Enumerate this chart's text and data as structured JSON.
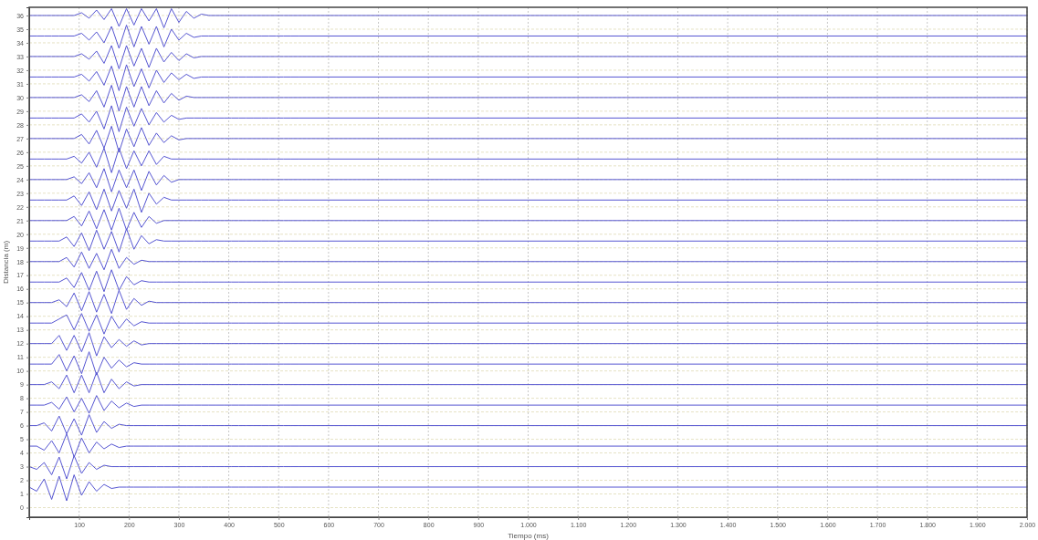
{
  "chart_data": {
    "type": "line",
    "xlabel": "Tiempo (ms)",
    "ylabel": "Distancia (m)",
    "grid": true,
    "xlim": [
      0,
      2000
    ],
    "ylim": [
      -0.7,
      36.6
    ],
    "xticks": [
      100,
      200,
      300,
      400,
      500,
      600,
      700,
      800,
      900,
      {
        "value": 1000,
        "label": "1.000"
      },
      {
        "value": 1100,
        "label": "1.100"
      },
      {
        "value": 1200,
        "label": "1.200"
      },
      {
        "value": 1300,
        "label": "1.300"
      },
      {
        "value": 1400,
        "label": "1.400"
      },
      {
        "value": 1500,
        "label": "1.500"
      },
      {
        "value": 1600,
        "label": "1.600"
      },
      {
        "value": 1700,
        "label": "1.700"
      },
      {
        "value": 1800,
        "label": "1.800"
      },
      {
        "value": 1900,
        "label": "1.900"
      },
      {
        "value": 2000,
        "label": "2.000"
      }
    ],
    "yticks": [
      0,
      1,
      2,
      3,
      4,
      5,
      6,
      7,
      8,
      9,
      10,
      11,
      12,
      13,
      14,
      15,
      16,
      17,
      18,
      19,
      20,
      21,
      22,
      23,
      24,
      25,
      26,
      27,
      28,
      29,
      30,
      31,
      32,
      33,
      34,
      35,
      36
    ],
    "x": [
      0,
      15,
      30,
      45,
      60,
      75,
      90,
      105,
      120,
      135,
      150,
      165,
      180,
      195,
      210,
      225,
      240,
      255,
      270,
      285,
      300,
      315,
      330,
      345,
      360,
      375,
      390,
      405,
      420,
      435,
      450,
      465,
      480,
      495,
      510,
      525,
      540,
      2000
    ],
    "series": [
      {
        "color": "#5656d2",
        "values": [
          1.5,
          1.2,
          2.1,
          0.6,
          2.3,
          0.5,
          2.4,
          0.9,
          1.9,
          1.2,
          1.7,
          1.4,
          1.5,
          1.5,
          1.5,
          1.5,
          1.5,
          1.5,
          1.5,
          1.5,
          1.5,
          1.5,
          1.5,
          1.5,
          1.5,
          1.5,
          1.5,
          1.5,
          1.5,
          1.5,
          1.5,
          1.5,
          1.5,
          1.5,
          1.5,
          1.5,
          1.5,
          1.5
        ]
      },
      {
        "color": "#5656d2",
        "values": [
          3,
          2.8,
          3.3,
          2.4,
          3.7,
          2.1,
          3.8,
          2.5,
          3.3,
          2.8,
          3.1,
          3,
          3,
          3,
          3,
          3,
          3,
          3,
          3,
          3,
          3,
          3,
          3,
          3,
          3,
          3,
          3,
          3,
          3,
          3,
          3,
          3,
          3,
          3,
          3,
          3,
          3,
          3
        ]
      },
      {
        "color": "#5656d2",
        "values": [
          4.5,
          4.5,
          4.2,
          4.9,
          4.0,
          5.4,
          3.7,
          5.1,
          4.0,
          4.8,
          4.3,
          4.65,
          4.4,
          4.5,
          4.5,
          4.5,
          4.5,
          4.5,
          4.5,
          4.5,
          4.5,
          4.5,
          4.5,
          4.5,
          4.5,
          4.5,
          4.5,
          4.5,
          4.5,
          4.5,
          4.5,
          4.5,
          4.5,
          4.5,
          4.5,
          4.5,
          4.5,
          4.5
        ]
      },
      {
        "color": "#5656d2",
        "values": [
          6,
          6,
          6.2,
          5.6,
          6.7,
          5.4,
          6.5,
          5.3,
          6.8,
          5.5,
          6.3,
          5.8,
          6.1,
          6,
          6,
          6,
          6,
          6,
          6,
          6,
          6,
          6,
          6,
          6,
          6,
          6,
          6,
          6,
          6,
          6,
          6,
          6,
          6,
          6,
          6,
          6,
          6,
          6
        ]
      },
      {
        "color": "#5656d2",
        "values": [
          7.5,
          7.5,
          7.5,
          7.7,
          7.2,
          8.1,
          7.0,
          8.0,
          6.9,
          8.2,
          7.1,
          7.8,
          7.3,
          7.65,
          7.4,
          7.5,
          7.5,
          7.5,
          7.5,
          7.5,
          7.5,
          7.5,
          7.5,
          7.5,
          7.5,
          7.5,
          7.5,
          7.5,
          7.5,
          7.5,
          7.5,
          7.5,
          7.5,
          7.5,
          7.5,
          7.5,
          7.5,
          7.5
        ]
      },
      {
        "color": "#5656d2",
        "values": [
          9,
          9,
          9,
          9.2,
          8.7,
          9.7,
          8.4,
          9.7,
          8.4,
          9.9,
          8.4,
          9.4,
          8.7,
          9.2,
          8.9,
          9,
          9,
          9,
          9,
          9,
          9,
          9,
          9,
          9,
          9,
          9,
          9,
          9,
          9,
          9,
          9,
          9,
          9,
          9,
          9,
          9,
          9,
          9
        ]
      },
      {
        "color": "#5656d2",
        "values": [
          10.5,
          10.5,
          10.5,
          10.5,
          11.2,
          10.0,
          11.1,
          9.8,
          11.4,
          9.7,
          11.0,
          10.2,
          10.8,
          10.3,
          10.6,
          10.5,
          10.5,
          10.5,
          10.5,
          10.5,
          10.5,
          10.5,
          10.5,
          10.5,
          10.5,
          10.5,
          10.5,
          10.5,
          10.5,
          10.5,
          10.5,
          10.5,
          10.5,
          10.5,
          10.5,
          10.5,
          10.5,
          10.5
        ]
      },
      {
        "color": "#5656d2",
        "values": [
          12,
          12,
          12,
          12,
          12.6,
          11.5,
          12.6,
          11.4,
          12.8,
          11.1,
          12.5,
          11.7,
          12.3,
          11.8,
          12.2,
          11.9,
          12,
          12,
          12,
          12,
          12,
          12,
          12,
          12,
          12,
          12,
          12,
          12,
          12,
          12,
          12,
          12,
          12,
          12,
          12,
          12,
          12,
          12
        ]
      },
      {
        "color": "#5656d2",
        "values": [
          13.5,
          13.5,
          13.5,
          13.5,
          13.8,
          14.1,
          13.0,
          14.2,
          12.9,
          14.1,
          12.7,
          14.0,
          13.1,
          13.8,
          13.3,
          13.6,
          13.5,
          13.5,
          13.5,
          13.5,
          13.5,
          13.5,
          13.5,
          13.5,
          13.5,
          13.5,
          13.5,
          13.5,
          13.5,
          13.5,
          13.5,
          13.5,
          13.5,
          13.5,
          13.5,
          13.5,
          13.5,
          13.5
        ]
      },
      {
        "color": "#5656d2",
        "values": [
          15,
          15,
          15,
          15,
          15.2,
          14.7,
          15.7,
          14.4,
          15.8,
          14.3,
          15.6,
          14.2,
          15.9,
          14.5,
          15.3,
          14.8,
          15.1,
          15,
          15,
          15,
          15,
          15,
          15,
          15,
          15,
          15,
          15,
          15,
          15,
          15,
          15,
          15,
          15,
          15,
          15,
          15,
          15,
          15
        ]
      },
      {
        "color": "#5656d2",
        "values": [
          16.5,
          16.5,
          16.5,
          16.5,
          16.5,
          16.8,
          16.1,
          17.2,
          15.9,
          17.3,
          15.8,
          17.4,
          15.9,
          16.9,
          16.3,
          16.6,
          16.5,
          16.5,
          16.5,
          16.5,
          16.5,
          16.5,
          16.5,
          16.5,
          16.5,
          16.5,
          16.5,
          16.5,
          16.5,
          16.5,
          16.5,
          16.5,
          16.5,
          16.5,
          16.5,
          16.5,
          16.5,
          16.5
        ]
      },
      {
        "color": "#5656d2",
        "values": [
          18,
          18,
          18,
          18,
          18,
          18.3,
          17.6,
          18.7,
          17.5,
          18.6,
          17.4,
          18.9,
          17.5,
          18.3,
          17.8,
          18.1,
          18,
          18,
          18,
          18,
          18,
          18,
          18,
          18,
          18,
          18,
          18,
          18,
          18,
          18,
          18,
          18,
          18,
          18,
          18,
          18,
          18,
          18
        ]
      },
      {
        "color": "#5656d2",
        "values": [
          19.5,
          19.5,
          19.5,
          19.5,
          19.5,
          19.8,
          19.1,
          20.1,
          18.8,
          20.3,
          18.9,
          20.2,
          18.7,
          20.4,
          18.9,
          19.9,
          19.3,
          19.6,
          19.5,
          19.5,
          19.5,
          19.5,
          19.5,
          19.5,
          19.5,
          19.5,
          19.5,
          19.5,
          19.5,
          19.5,
          19.5,
          19.5,
          19.5,
          19.5,
          19.5,
          19.5,
          19.5,
          19.5
        ]
      },
      {
        "color": "#5656d2",
        "values": [
          21,
          21,
          21,
          21,
          21,
          21,
          21.3,
          20.6,
          21.7,
          20.4,
          21.8,
          20.3,
          21.9,
          20.3,
          21.6,
          20.5,
          21.3,
          20.8,
          21,
          21,
          21,
          21,
          21,
          21,
          21,
          21,
          21,
          21,
          21,
          21,
          21,
          21,
          21,
          21,
          21,
          21,
          21,
          21
        ]
      },
      {
        "color": "#5656d2",
        "values": [
          22.5,
          22.5,
          22.5,
          22.5,
          22.5,
          22.5,
          22.8,
          22.1,
          23.1,
          21.8,
          23.3,
          21.7,
          23.2,
          21.9,
          23.3,
          21.6,
          23.0,
          22.2,
          22.7,
          22.5,
          22.5,
          22.5,
          22.5,
          22.5,
          22.5,
          22.5,
          22.5,
          22.5,
          22.5,
          22.5,
          22.5,
          22.5,
          22.5,
          22.5,
          22.5,
          22.5,
          22.5,
          22.5
        ]
      },
      {
        "color": "#5656d2",
        "values": [
          24,
          24,
          24,
          24,
          24,
          24,
          24.2,
          23.7,
          24.5,
          23.4,
          24.8,
          23.1,
          24.7,
          23.4,
          24.7,
          23.2,
          24.6,
          23.6,
          24.3,
          23.8,
          24,
          24,
          24,
          24,
          24,
          24,
          24,
          24,
          24,
          24,
          24,
          24,
          24,
          24,
          24,
          24,
          24,
          24
        ]
      },
      {
        "color": "#5656d2",
        "values": [
          25.5,
          25.5,
          25.5,
          25.5,
          25.5,
          25.5,
          25.7,
          25.2,
          26.0,
          24.9,
          26.3,
          24.5,
          26.3,
          24.8,
          26.1,
          25.0,
          26.1,
          25.1,
          25.7,
          25.5,
          25.5,
          25.5,
          25.5,
          25.5,
          25.5,
          25.5,
          25.5,
          25.5,
          25.5,
          25.5,
          25.5,
          25.5,
          25.5,
          25.5,
          25.5,
          25.5,
          25.5,
          25.5
        ]
      },
      {
        "color": "#5656d2",
        "values": [
          27,
          27,
          27,
          27,
          27,
          27,
          27,
          27.3,
          26.6,
          27.6,
          26.3,
          27.9,
          26.0,
          27.7,
          26.4,
          27.8,
          26.5,
          27.4,
          26.7,
          27.2,
          26.9,
          27,
          27,
          27,
          27,
          27,
          27,
          27,
          27,
          27,
          27,
          27,
          27,
          27,
          27,
          27,
          27,
          27
        ]
      },
      {
        "color": "#5656d2",
        "values": [
          28.5,
          28.5,
          28.5,
          28.5,
          28.5,
          28.5,
          28.5,
          28.8,
          28.2,
          29.0,
          27.7,
          29.4,
          27.5,
          29.3,
          27.9,
          29.2,
          28.0,
          28.9,
          28.2,
          28.7,
          28.4,
          28.5,
          28.5,
          28.5,
          28.5,
          28.5,
          28.5,
          28.5,
          28.5,
          28.5,
          28.5,
          28.5,
          28.5,
          28.5,
          28.5,
          28.5,
          28.5,
          28.5
        ]
      },
      {
        "color": "#5656d2",
        "values": [
          30,
          30,
          30,
          30,
          30,
          30,
          30,
          30.2,
          29.7,
          30.5,
          29.3,
          30.9,
          29.0,
          30.8,
          29.3,
          30.8,
          29.4,
          30.5,
          29.6,
          30.3,
          29.8,
          30.1,
          30,
          30,
          30,
          30,
          30,
          30,
          30,
          30,
          30,
          30,
          30,
          30,
          30,
          30,
          30,
          30
        ]
      },
      {
        "color": "#5656d2",
        "values": [
          31.5,
          31.5,
          31.5,
          31.5,
          31.5,
          31.5,
          31.5,
          31.7,
          31.2,
          31.9,
          30.9,
          32.3,
          30.5,
          32.4,
          30.8,
          32.1,
          30.7,
          32.0,
          31.1,
          31.8,
          31.3,
          31.7,
          31.4,
          31.5,
          31.5,
          31.5,
          31.5,
          31.5,
          31.5,
          31.5,
          31.5,
          31.5,
          31.5,
          31.5,
          31.5,
          31.5,
          31.5,
          31.5
        ]
      },
      {
        "color": "#5656d2",
        "values": [
          33,
          33,
          33,
          33,
          33,
          33,
          33,
          33.2,
          32.8,
          33.4,
          32.5,
          33.8,
          32.1,
          33.8,
          32.3,
          33.6,
          32.2,
          33.6,
          32.6,
          33.3,
          32.7,
          33.2,
          32.9,
          33,
          33,
          33,
          33,
          33,
          33,
          33,
          33,
          33,
          33,
          33,
          33,
          33,
          33,
          33
        ]
      },
      {
        "color": "#5656d2",
        "values": [
          34.5,
          34.5,
          34.5,
          34.5,
          34.5,
          34.5,
          34.5,
          34.7,
          34.2,
          34.8,
          34.0,
          35.2,
          33.6,
          35.3,
          33.7,
          35.2,
          33.9,
          35.2,
          33.7,
          35.0,
          34.2,
          34.7,
          34.4,
          34.5,
          34.5,
          34.5,
          34.5,
          34.5,
          34.5,
          34.5,
          34.5,
          34.5,
          34.5,
          34.5,
          34.5,
          34.5,
          34.5,
          34.5
        ]
      },
      {
        "color": "#5656d2",
        "values": [
          36,
          36,
          36,
          36,
          36,
          36,
          36,
          36.2,
          35.8,
          36.4,
          35.7,
          36.5,
          35.2,
          36.5,
          35.3,
          36.5,
          35.6,
          36.5,
          35.1,
          36.5,
          35.5,
          36.3,
          35.8,
          36.1,
          36,
          36,
          36,
          36,
          36,
          36,
          36,
          36,
          36,
          36,
          36,
          36,
          36,
          36
        ]
      }
    ]
  }
}
